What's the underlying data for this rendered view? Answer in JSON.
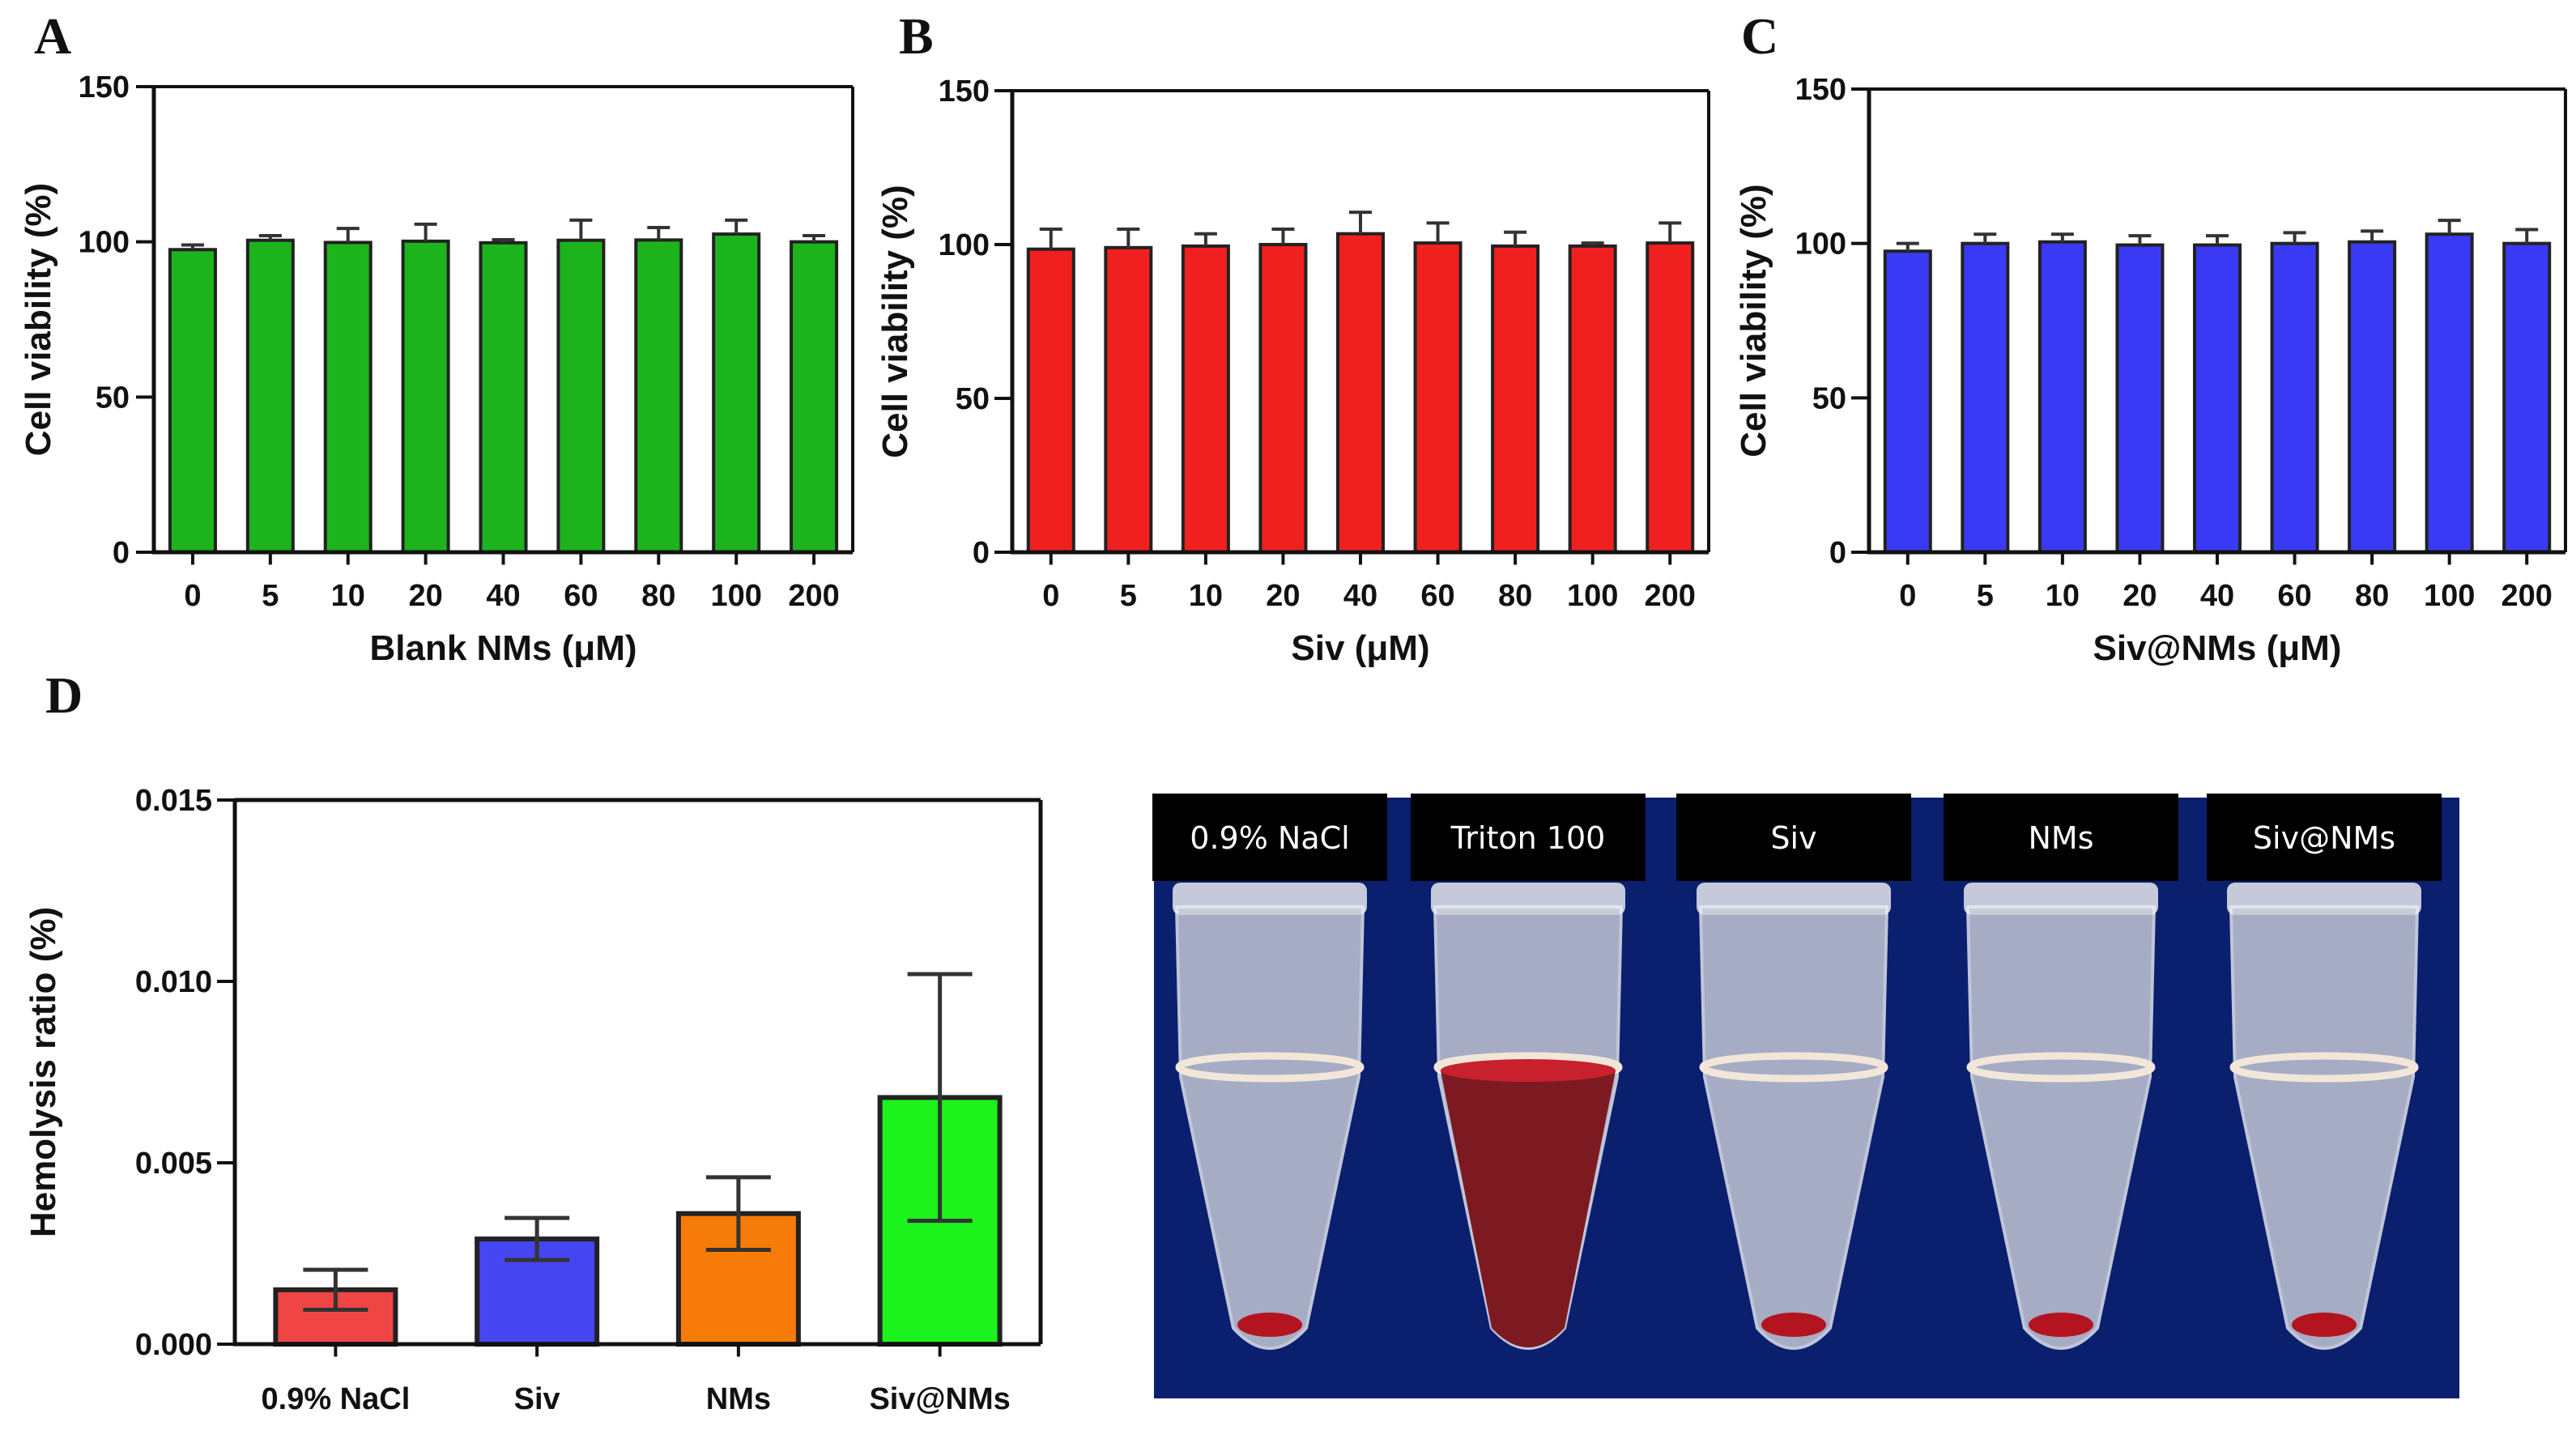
{
  "panels": {
    "A": "A",
    "B": "B",
    "C": "C",
    "D": "D"
  },
  "chart_data": [
    {
      "id": "A",
      "type": "bar",
      "title": "",
      "xlabel": "Blank NMs (μM)",
      "ylabel": "Cell viability (%)",
      "ylim": [
        0,
        150
      ],
      "yticks": [
        0,
        50,
        100,
        150
      ],
      "ytick_labels": [
        "0",
        "50",
        "100",
        "150"
      ],
      "categories": [
        "0",
        "5",
        "10",
        "20",
        "40",
        "60",
        "80",
        "100",
        "200"
      ],
      "values": [
        97.5,
        100.5,
        99.8,
        100.2,
        99.7,
        100.5,
        100.6,
        102.5,
        100.0
      ],
      "errors": [
        1.5,
        1.5,
        4.5,
        5.5,
        1.0,
        6.5,
        4.0,
        4.5,
        2.0
      ],
      "color": "#1db31d",
      "grid": false,
      "legend": "none"
    },
    {
      "id": "B",
      "type": "bar",
      "title": "",
      "xlabel": "Siv (μM)",
      "ylabel": "Cell viability (%)",
      "ylim": [
        0,
        150
      ],
      "yticks": [
        0,
        50,
        100,
        150
      ],
      "ytick_labels": [
        "0",
        "50",
        "100",
        "150"
      ],
      "categories": [
        "0",
        "5",
        "10",
        "20",
        "40",
        "60",
        "80",
        "100",
        "200"
      ],
      "values": [
        98.5,
        99.0,
        99.5,
        100.0,
        103.5,
        100.5,
        99.5,
        99.5,
        100.5
      ],
      "errors": [
        6.5,
        6.0,
        4.0,
        5.0,
        7.0,
        6.5,
        4.5,
        1.0,
        6.5
      ],
      "color": "#f02020",
      "grid": false,
      "legend": "none"
    },
    {
      "id": "C",
      "type": "bar",
      "title": "",
      "xlabel": "Siv@NMs (μM)",
      "ylabel": "Cell viability (%)",
      "ylim": [
        0,
        150
      ],
      "yticks": [
        0,
        50,
        100,
        150
      ],
      "ytick_labels": [
        "0",
        "50",
        "100",
        "150"
      ],
      "categories": [
        "0",
        "5",
        "10",
        "20",
        "40",
        "60",
        "80",
        "100",
        "200"
      ],
      "values": [
        97.5,
        100.0,
        100.5,
        99.5,
        99.5,
        100.0,
        100.5,
        103.0,
        100.0
      ],
      "errors": [
        2.5,
        3.0,
        2.5,
        3.0,
        3.0,
        3.5,
        3.5,
        4.5,
        4.5
      ],
      "color": "#3a3af5",
      "grid": false,
      "legend": "none"
    },
    {
      "id": "D",
      "type": "bar",
      "title": "",
      "xlabel": "",
      "ylabel": "Hemolysis ratio (%)",
      "ylim": [
        0,
        0.015
      ],
      "yticks": [
        0,
        0.005,
        0.01,
        0.015
      ],
      "ytick_labels": [
        "0.000",
        "0.005",
        "0.010",
        "0.015"
      ],
      "categories": [
        "0.9% NaCl",
        "Siv",
        "NMs",
        "Siv@NMs"
      ],
      "values": [
        0.0015,
        0.0029,
        0.0036,
        0.0068
      ],
      "errors": [
        0.00055,
        0.00058,
        0.001,
        0.0034
      ],
      "colors": [
        "#f04545",
        "#4545f2",
        "#f77b08",
        "#1cf21c"
      ],
      "grid": false,
      "legend": "none"
    }
  ],
  "photo": {
    "labels": [
      "0.9% NaCl",
      "Triton 100",
      "Siv",
      "NMs",
      "Siv@NMs"
    ],
    "background_color": "#0a1f6e",
    "tube_color": "#c9ccd8",
    "blood_color": "#b31420",
    "lysed_color": "#7a0c12"
  }
}
